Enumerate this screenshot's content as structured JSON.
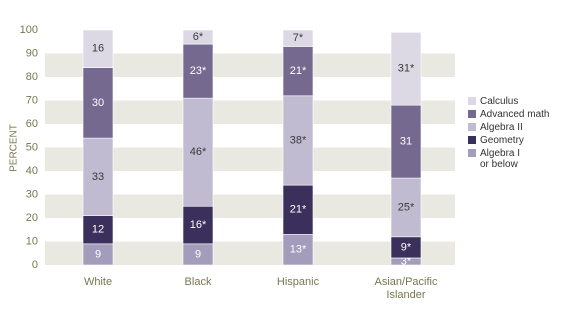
{
  "chart_data": {
    "type": "stacked_bar",
    "y_label": "PERCENT",
    "categories": [
      "White",
      "Black",
      "Hispanic",
      "Asian/Pacific Islander"
    ],
    "series": [
      {
        "name": "Algebra I\nor below",
        "color": "#a39cba",
        "label_color": "#ffffff",
        "values": [
          9,
          9,
          13,
          3
        ],
        "value_labels": [
          "9",
          "9",
          "13*",
          "3*"
        ]
      },
      {
        "name": "Geometry",
        "color": "#3b2f5c",
        "label_color": "#ffffff",
        "values": [
          12,
          16,
          21,
          9
        ],
        "value_labels": [
          "12",
          "16*",
          "21*",
          "9*"
        ]
      },
      {
        "name": "Algebra II",
        "color": "#c0bbd1",
        "label_color": "#3a3a3a",
        "values": [
          33,
          46,
          38,
          25
        ],
        "value_labels": [
          "33",
          "46*",
          "38*",
          "25*"
        ]
      },
      {
        "name": "Advanced math",
        "color": "#76698f",
        "label_color": "#ffffff",
        "values": [
          30,
          23,
          21,
          31
        ],
        "value_labels": [
          "30",
          "23*",
          "21*",
          "31"
        ]
      },
      {
        "name": "Calculus",
        "color": "#dcd9e5",
        "label_color": "#3a3a3a",
        "values": [
          16,
          6,
          7,
          31
        ],
        "value_labels": [
          "16",
          "6*",
          "7*",
          "31*"
        ]
      }
    ],
    "ylim": [
      0,
      100
    ],
    "yticks": [
      0,
      10,
      20,
      30,
      40,
      50,
      60,
      70,
      80,
      90,
      100
    ],
    "bands": true,
    "band_color": "#e9e9e1"
  }
}
